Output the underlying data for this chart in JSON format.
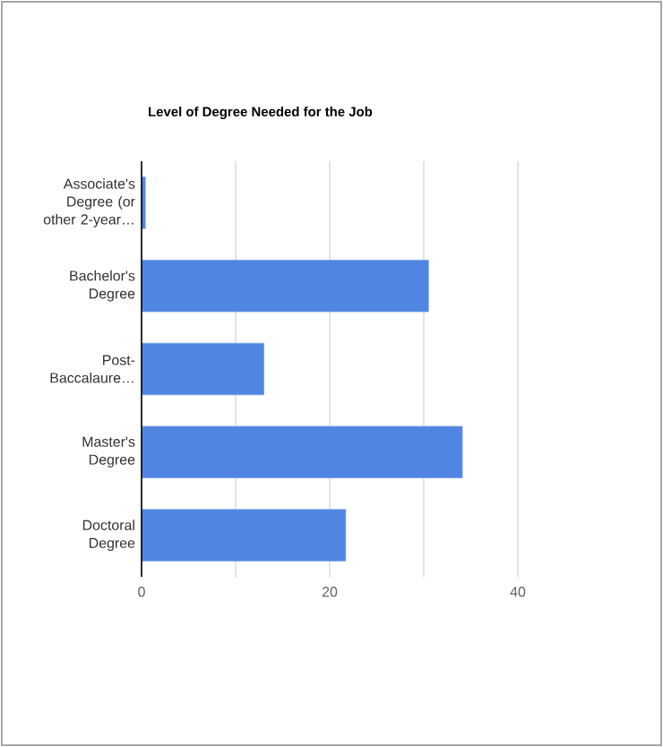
{
  "chart_data": {
    "type": "bar",
    "orientation": "horizontal",
    "title": "Level of Degree Needed for the Job",
    "categories": [
      "Associate's Degree (or other 2-year…",
      "Bachelor's Degree",
      "Post-Baccalaure…",
      "Master's Degree",
      "Doctoral Degree"
    ],
    "values": [
      0.4,
      30.5,
      13.0,
      34.1,
      21.7
    ],
    "color": "#5086e1",
    "xlim": [
      0,
      40
    ],
    "xticks": [
      0,
      {
        "value": 10,
        "label": null
      },
      20,
      {
        "value": 30,
        "label": null
      },
      40
    ],
    "grid": "x"
  }
}
